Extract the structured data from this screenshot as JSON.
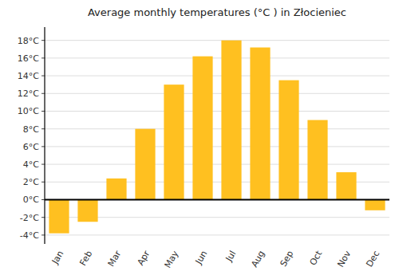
{
  "chart_data": {
    "type": "bar",
    "title": "Average monthly temperatures (°C ) in Złocieniec",
    "categories": [
      "Jan",
      "Feb",
      "Mar",
      "Apr",
      "May",
      "Jun",
      "Jul",
      "Aug",
      "Sep",
      "Oct",
      "Nov",
      "Dec"
    ],
    "values": [
      -3.8,
      -2.5,
      2.4,
      8.0,
      13.0,
      16.2,
      18.0,
      17.2,
      13.5,
      9.0,
      3.1,
      -1.2
    ],
    "color": "#FFC020",
    "ylim": [
      -5,
      19.5
    ],
    "yticks": [
      {
        "value": -4,
        "label": "-4°C"
      },
      {
        "value": -2,
        "label": "-2°C"
      },
      {
        "value": 0,
        "label": "0°C"
      },
      {
        "value": 2,
        "label": "2°C"
      },
      {
        "value": 4,
        "label": "4°C"
      },
      {
        "value": 6,
        "label": "6°C"
      },
      {
        "value": 8,
        "label": "8°C"
      },
      {
        "value": 10,
        "label": "10°C"
      },
      {
        "value": 12,
        "label": "12°C"
      },
      {
        "value": 14,
        "label": "14°C"
      },
      {
        "value": 16,
        "label": "16°C"
      },
      {
        "value": 18,
        "label": "18°C"
      }
    ],
    "grid": true
  }
}
